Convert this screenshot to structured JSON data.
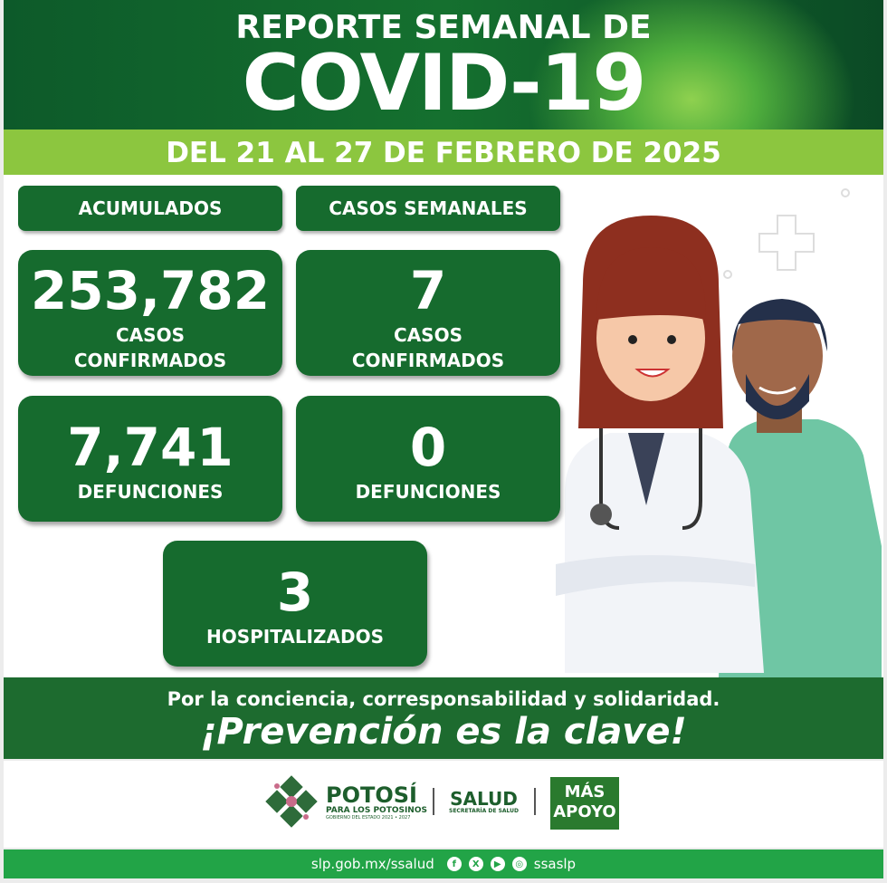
{
  "header": {
    "line1": "REPORTE SEMANAL DE",
    "line2": "COVID-19",
    "date": "DEL 21 AL 27 DE FEBRERO  DE 2025"
  },
  "sections": {
    "accumulated": "ACUMULADOS",
    "weekly": "CASOS SEMANALES"
  },
  "accumulated": {
    "cases_value": "253,782",
    "cases_label1": "CASOS",
    "cases_label2": "CONFIRMADOS",
    "deaths_value": "7,741",
    "deaths_label": "DEFUNCIONES"
  },
  "weekly": {
    "cases_value": "7",
    "cases_label1": "CASOS",
    "cases_label2": "CONFIRMADOS",
    "deaths_value": "0",
    "deaths_label": "DEFUNCIONES"
  },
  "hospitalized": {
    "value": "3",
    "label": "HOSPITALIZADOS"
  },
  "slogan": {
    "line1": "Por la conciencia, corresponsabilidad y solidaridad.",
    "line2": "¡Prevención es la clave!"
  },
  "logos": {
    "potosi": "POTOSÍ",
    "potosi_sub": "PARA LOS POTOSINOS",
    "potosi_gov": "GOBIERNO DEL ESTADO 2021 • 2027",
    "salud": "SALUD",
    "salud_sub": "SECRETARÍA DE SALUD",
    "mas": "MÁS",
    "apoyo": "APOYO"
  },
  "footer": {
    "url": "slp.gob.mx/ssalud",
    "handle": "ssaslp",
    "icons": [
      "facebook-icon",
      "x-icon",
      "youtube-icon",
      "instagram-icon"
    ]
  },
  "colors": {
    "dark_green": "#166b2e",
    "lime": "#8cc63f",
    "footer_green": "#22a447"
  }
}
